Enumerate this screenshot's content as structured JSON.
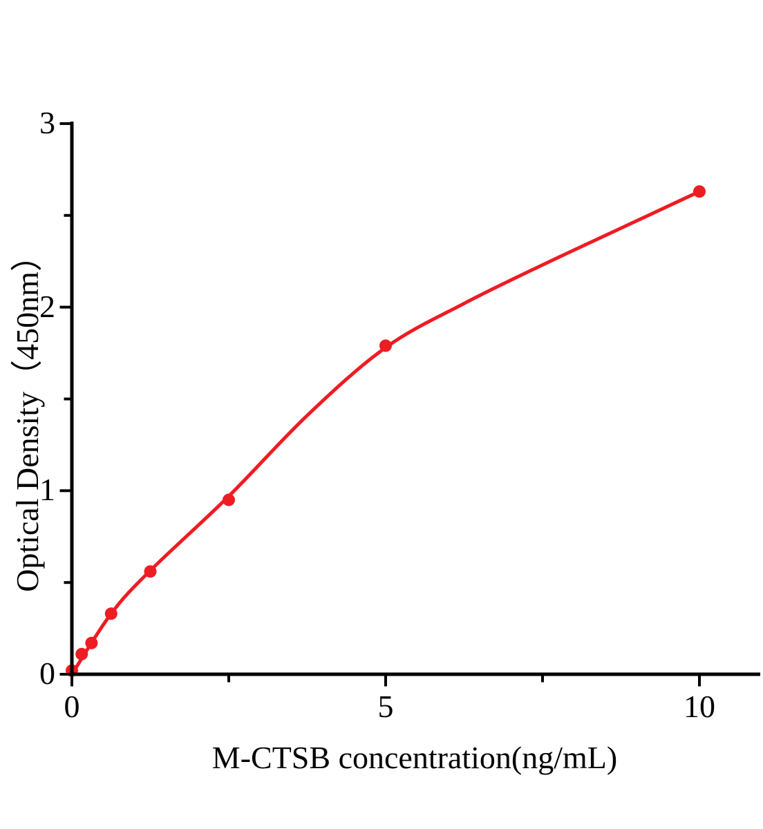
{
  "figure": {
    "background": "#ffffff",
    "axis_color": "#000000",
    "accent_color": "#ee1c23"
  },
  "chart_data": {
    "type": "scatter",
    "title": "",
    "xlabel": "M-CTSB concentration(ng/mL)",
    "ylabel": "Optical Density（450nm）",
    "xlim": [
      0,
      10.97
    ],
    "ylim": [
      0,
      3.01
    ],
    "grid": false,
    "legend_position": "none",
    "x_ticks": {
      "major": [
        {
          "value": 0,
          "label": "0"
        },
        {
          "value": 5,
          "label": "5"
        },
        {
          "value": 10,
          "label": "10"
        }
      ],
      "minor": [
        2.5,
        7.5
      ]
    },
    "y_ticks": {
      "major": [
        {
          "value": 0,
          "label": "0"
        },
        {
          "value": 1,
          "label": "1"
        },
        {
          "value": 2,
          "label": "2"
        },
        {
          "value": 3,
          "label": "3"
        }
      ],
      "minor": [
        0.5,
        1.5,
        2.5
      ]
    },
    "series": [
      {
        "name": "standard-points",
        "type": "scatter",
        "marker": "circle",
        "color": "#ee1c23",
        "points": [
          [
            0,
            0.02
          ],
          [
            0.156,
            0.11
          ],
          [
            0.3125,
            0.17
          ],
          [
            0.625,
            0.33
          ],
          [
            1.25,
            0.56
          ],
          [
            2.5,
            0.95
          ],
          [
            5,
            1.79
          ],
          [
            10,
            2.63
          ]
        ]
      },
      {
        "name": "fit-curve",
        "type": "line",
        "color": "#ee1c23",
        "points": [
          [
            0,
            0.0
          ],
          [
            0.625,
            0.33
          ],
          [
            1.25,
            0.565
          ],
          [
            2.5,
            0.97
          ],
          [
            3.75,
            1.41
          ],
          [
            5,
            1.78
          ],
          [
            6.25,
            2.02
          ],
          [
            7.5,
            2.23
          ],
          [
            8.75,
            2.43
          ],
          [
            10,
            2.63
          ]
        ]
      }
    ]
  }
}
